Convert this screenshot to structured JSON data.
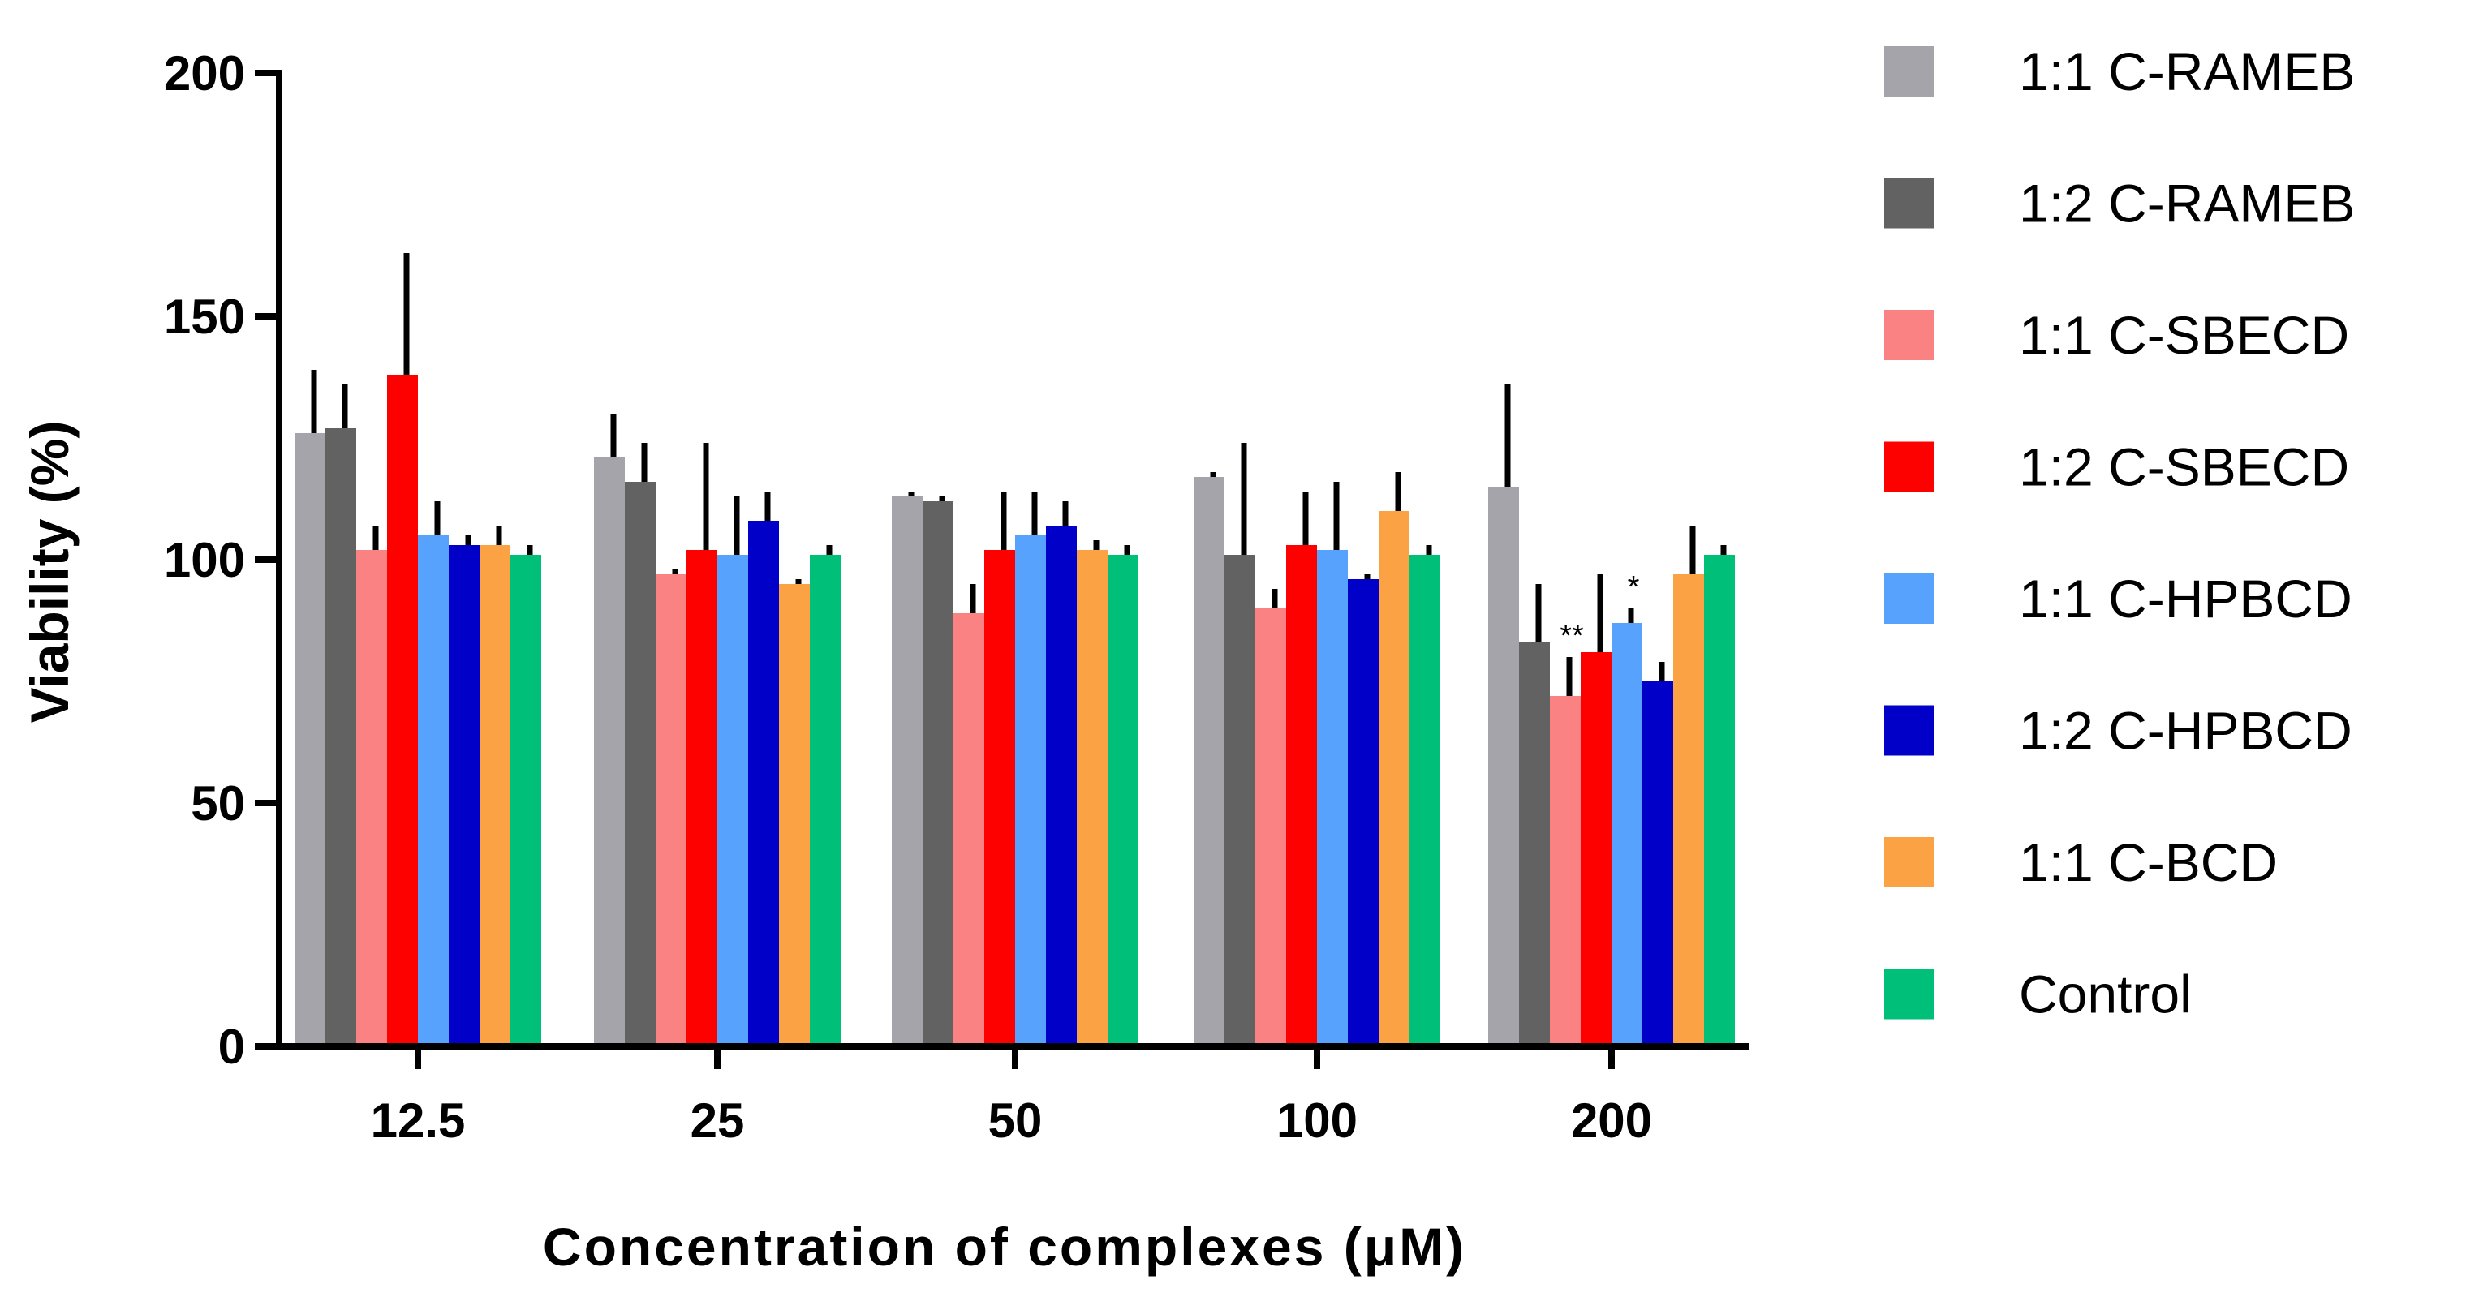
{
  "chart_data": {
    "type": "bar",
    "title": "",
    "xlabel": "Concentration of complexes (μM)",
    "ylabel": "Viability (%)",
    "ylim": [
      0,
      200
    ],
    "yticks": [
      0,
      50,
      100,
      150,
      200
    ],
    "categories": [
      "12.5",
      "25",
      "50",
      "100",
      "200"
    ],
    "legend_position": "right",
    "series": [
      {
        "name": "1:1 C-RAMEB",
        "color": "#a5a4aa",
        "values": [
          126,
          121,
          113,
          117,
          115
        ],
        "errors": [
          13,
          9,
          0.5,
          1,
          21
        ]
      },
      {
        "name": "1:2 C-RAMEB",
        "color": "#626262",
        "values": [
          127,
          116,
          112,
          101,
          83
        ],
        "errors": [
          9,
          8,
          0.5,
          23,
          12
        ]
      },
      {
        "name": "1:1 C-SBECD",
        "color": "#fa8283",
        "values": [
          102,
          97,
          89,
          90,
          72
        ],
        "errors": [
          5,
          1,
          6,
          4,
          8
        ]
      },
      {
        "name": "1:2 C-SBECD",
        "color": "#fd0000",
        "values": [
          138,
          102,
          102,
          103,
          81
        ],
        "errors": [
          25,
          22,
          12,
          11,
          16
        ]
      },
      {
        "name": "1:1 C-HPBCD",
        "color": "#56a2fc",
        "values": [
          105,
          101,
          105,
          102,
          87
        ],
        "errors": [
          7,
          12,
          9,
          14,
          3
        ]
      },
      {
        "name": "1:2 C-HPBCD",
        "color": "#0000c9",
        "values": [
          103,
          108,
          107,
          96,
          75
        ],
        "errors": [
          2,
          6,
          5,
          1,
          4
        ]
      },
      {
        "name": "1:1 C-BCD",
        "color": "#fba245",
        "values": [
          103,
          95,
          102,
          110,
          97
        ],
        "errors": [
          4,
          1,
          2,
          8,
          10
        ]
      },
      {
        "name": "Control",
        "color": "#00bf79",
        "values": [
          101,
          101,
          101,
          101,
          101
        ],
        "errors": [
          2,
          2,
          2,
          2,
          2
        ]
      }
    ],
    "annotations": [
      {
        "category": "200",
        "series": "1:1 C-SBECD",
        "text": "**"
      },
      {
        "category": "200",
        "series": "1:1 C-HPBCD",
        "text": "*"
      }
    ]
  }
}
